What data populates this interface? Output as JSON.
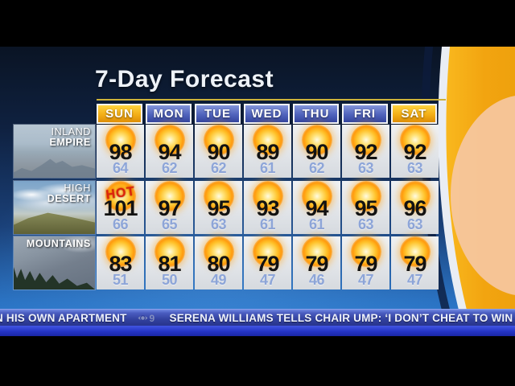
{
  "title": "7-Day Forecast",
  "chart_data": {
    "type": "table",
    "title": "7-Day Forecast",
    "columns": [
      "SUN",
      "MON",
      "TUE",
      "WED",
      "THU",
      "FRI",
      "SAT"
    ],
    "column_accents": [
      "gold",
      "blue",
      "blue",
      "blue",
      "blue",
      "blue",
      "gold"
    ],
    "rows": [
      {
        "region": "Inland Empire",
        "label_lines": [
          "INLAND",
          "EMPIRE"
        ],
        "image": "inland",
        "icon": "sunny",
        "highs": [
          98,
          94,
          90,
          89,
          90,
          92,
          92
        ],
        "lows": [
          64,
          62,
          62,
          61,
          62,
          63,
          63
        ],
        "badges": [
          null,
          null,
          null,
          null,
          null,
          null,
          null
        ]
      },
      {
        "region": "High Desert",
        "label_lines": [
          "HIGH",
          "DESERT"
        ],
        "image": "desert",
        "icon": "sunny",
        "highs": [
          101,
          97,
          95,
          93,
          94,
          95,
          96
        ],
        "lows": [
          66,
          65,
          63,
          61,
          61,
          63,
          63
        ],
        "badges": [
          "HOT",
          null,
          null,
          null,
          null,
          null,
          null
        ]
      },
      {
        "region": "Mountains",
        "label_lines": [
          "MOUNTAINS"
        ],
        "image": "mountains",
        "icon": "sunny",
        "highs": [
          83,
          81,
          80,
          79,
          79,
          79,
          79
        ],
        "lows": [
          51,
          50,
          49,
          47,
          46,
          47,
          47
        ],
        "badges": [
          null,
          null,
          null,
          null,
          null,
          null,
          null
        ]
      }
    ]
  },
  "ticker": {
    "left_text": "N HIS OWN APARTMENT",
    "station_logo": "cbs-eye-9",
    "right_text": "SERENA WILLIAMS TELLS CHAIR UMP: ‘I DON’T CHEAT TO WIN"
  },
  "colors": {
    "gold_accent": "#f3ae17",
    "blue_accent": "#5063bc",
    "high_temp": "#121212",
    "low_temp": "#8da5d8",
    "hot_badge": "#dd230b",
    "title_underline": "#cdb23a",
    "ticker_bar": "#32419e",
    "ticker_strip": "#2434c6",
    "swoosh_orange": "#f4a713"
  }
}
